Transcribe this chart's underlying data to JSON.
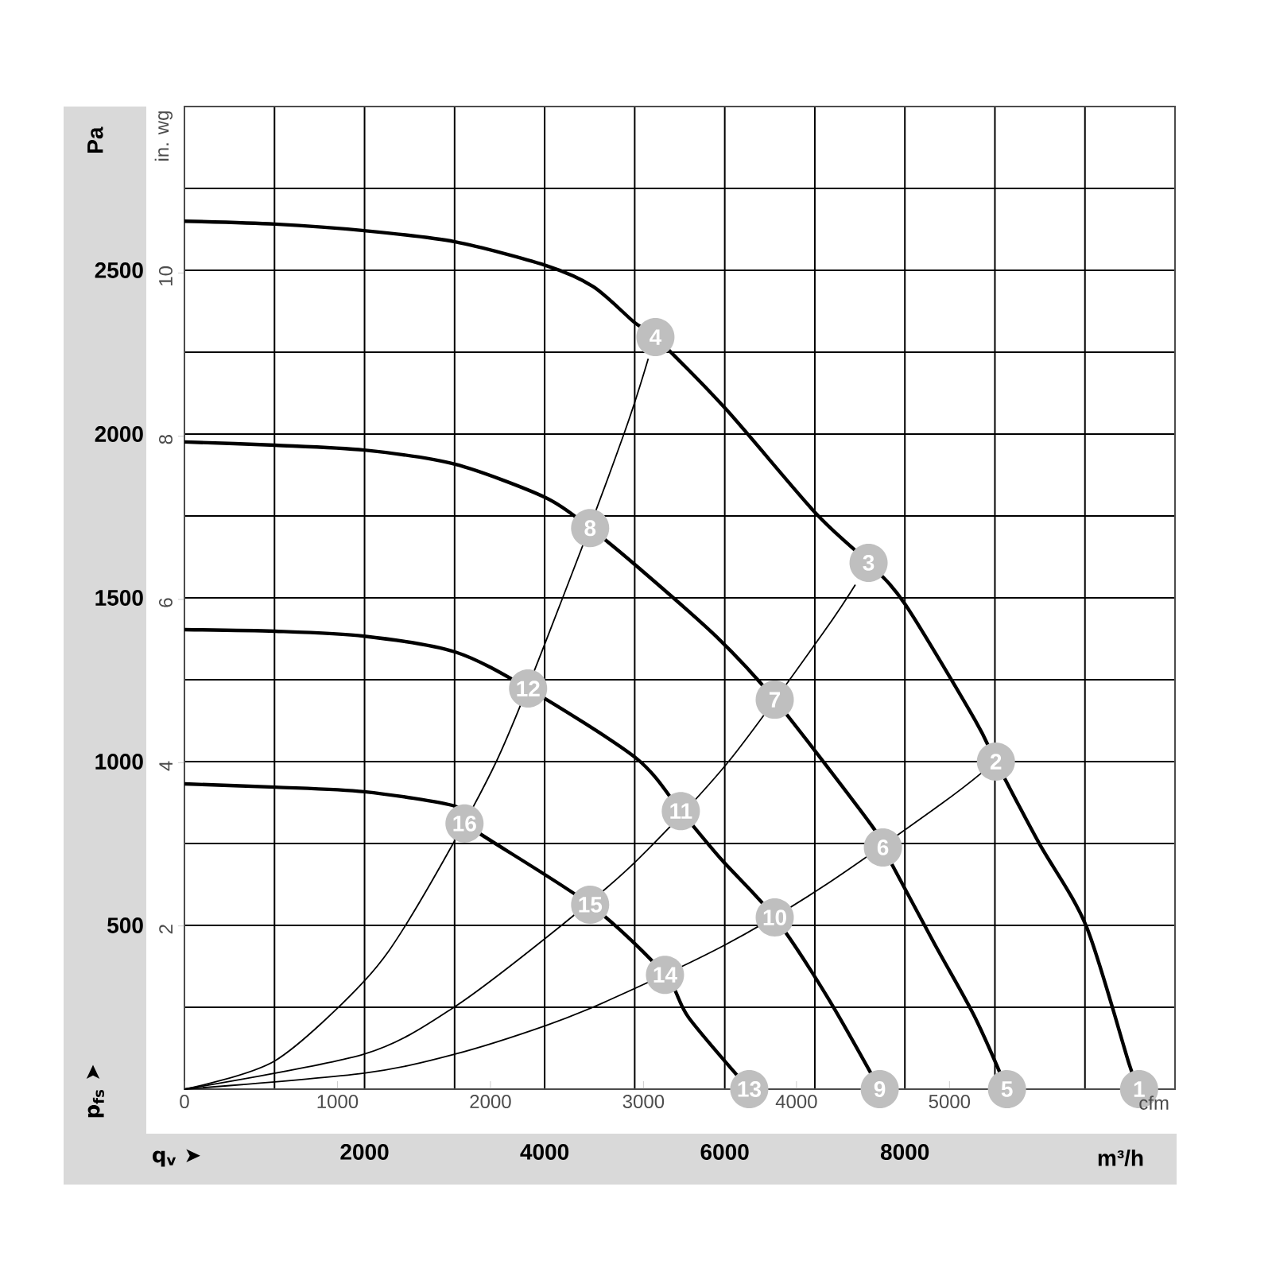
{
  "chart_data": {
    "type": "line",
    "xlabel": "m³/h",
    "ylabel": "Pa",
    "y2label": "in. wg",
    "x2label": "cfm",
    "xlim": [
      0,
      11000
    ],
    "xticks": [
      {
        "value": 0,
        "label": null
      },
      {
        "value": 1000,
        "label": null
      },
      2000,
      {
        "value": 3000,
        "label": null
      },
      4000,
      {
        "value": 5000,
        "label": null
      },
      6000,
      {
        "value": 7000,
        "label": null
      },
      8000,
      {
        "value": 9000,
        "label": null
      },
      {
        "value": 10000,
        "label": null
      },
      {
        "value": 11000,
        "label": null
      }
    ],
    "ylim": [
      0,
      3000
    ],
    "yticks": [
      {
        "value": 0,
        "label": null
      },
      {
        "value": 250,
        "label": null
      },
      500,
      {
        "value": 750,
        "label": null
      },
      1000,
      {
        "value": 1250,
        "label": null
      },
      1500,
      {
        "value": 1750,
        "label": null
      },
      2000,
      {
        "value": 2250,
        "label": null
      },
      2500,
      {
        "value": 2750,
        "label": null
      },
      {
        "value": 3000,
        "label": null
      }
    ],
    "x2lim": [
      0,
      6474
    ],
    "x2ticks": [
      0,
      1000,
      2000,
      3000,
      4000,
      5000
    ],
    "y2lim": [
      0,
      12.04
    ],
    "y2ticks": [
      2,
      4,
      6,
      8,
      10
    ],
    "grid": true,
    "line_style": "solid",
    "marker": "none",
    "series": [
      {
        "color": "#000000",
        "x": [
          0,
          1007,
          1996,
          3004,
          4011,
          4541,
          5000,
          5230,
          6007,
          7014,
          7597,
          8004,
          8781,
          9011,
          9488,
          10018,
          10495,
          10601
        ],
        "values": [
          2650,
          2641,
          2621,
          2587,
          2515,
          2450,
          2340,
          2296,
          2078,
          1757,
          1607,
          1480,
          1126,
          1000,
          752,
          495,
          73,
          0
        ]
      },
      {
        "color": "#000000",
        "x": [
          0,
          1007,
          1996,
          3004,
          4011,
          4505,
          5000,
          5901,
          6555,
          7615,
          7756,
          8322,
          8781,
          9134
        ],
        "values": [
          1976,
          1966,
          1951,
          1908,
          1806,
          1713,
          1602,
          1383,
          1189,
          811,
          738,
          447,
          218,
          0
        ]
      },
      {
        "color": "#000000",
        "x": [
          0,
          1007,
          1996,
          3004,
          3816,
          5018,
          5512,
          5954,
          6555,
          7138,
          7721
        ],
        "values": [
          1403,
          1398,
          1383,
          1335,
          1223,
          1010,
          849,
          704,
          524,
          282,
          0
        ]
      },
      {
        "color": "#000000",
        "x": [
          0,
          1007,
          1996,
          3004,
          3110,
          4505,
          5336,
          5601,
          6272
        ],
        "values": [
          932,
          922,
          908,
          864,
          811,
          563,
          349,
          218,
          0
        ]
      },
      {
        "color": "#000000",
        "x": [
          0,
          1007,
          1996,
          2544,
          3463,
          4200,
          4880,
          5150
        ],
        "values": [
          0,
          87,
          330,
          540,
          1000,
          1500,
          2000,
          2230
        ]
      },
      {
        "color": "#000000",
        "x": [
          0,
          1996,
          3004,
          4187,
          5030,
          6042,
          7085,
          7450
        ],
        "values": [
          0,
          107,
          252,
          500,
          700,
          1000,
          1390,
          1540
        ]
      },
      {
        "color": "#000000",
        "x": [
          0,
          1996,
          3004,
          4011,
          4700,
          6000,
          7100,
          8400,
          8850
        ],
        "values": [
          0,
          49,
          107,
          194,
          270,
          440,
          620,
          870,
          965
        ]
      }
    ],
    "annotations": [
      "q$_{v}$ ➤",
      "p$_{fs}$ ➤",
      {
        "text": "1",
        "x": 10601,
        "y": 0
      },
      {
        "text": "2",
        "x": 9011,
        "y": 1000
      },
      {
        "text": "3",
        "x": 7597,
        "y": 1607
      },
      {
        "text": "4",
        "x": 5230,
        "y": 2296
      },
      {
        "text": "5",
        "x": 9134,
        "y": 0
      },
      {
        "text": "6",
        "x": 7756,
        "y": 738
      },
      {
        "text": "7",
        "x": 6555,
        "y": 1189
      },
      {
        "text": "8",
        "x": 4505,
        "y": 1713
      },
      {
        "text": "9",
        "x": 7721,
        "y": 0
      },
      {
        "text": "10",
        "x": 6555,
        "y": 524
      },
      {
        "text": "11",
        "x": 5512,
        "y": 849
      },
      {
        "text": "12",
        "x": 3816,
        "y": 1223
      },
      {
        "text": "13",
        "x": 6272,
        "y": 0
      },
      {
        "text": "14",
        "x": 5336,
        "y": 349
      },
      {
        "text": "15",
        "x": 4505,
        "y": 563
      },
      {
        "text": "16",
        "x": 3110,
        "y": 811
      }
    ]
  }
}
